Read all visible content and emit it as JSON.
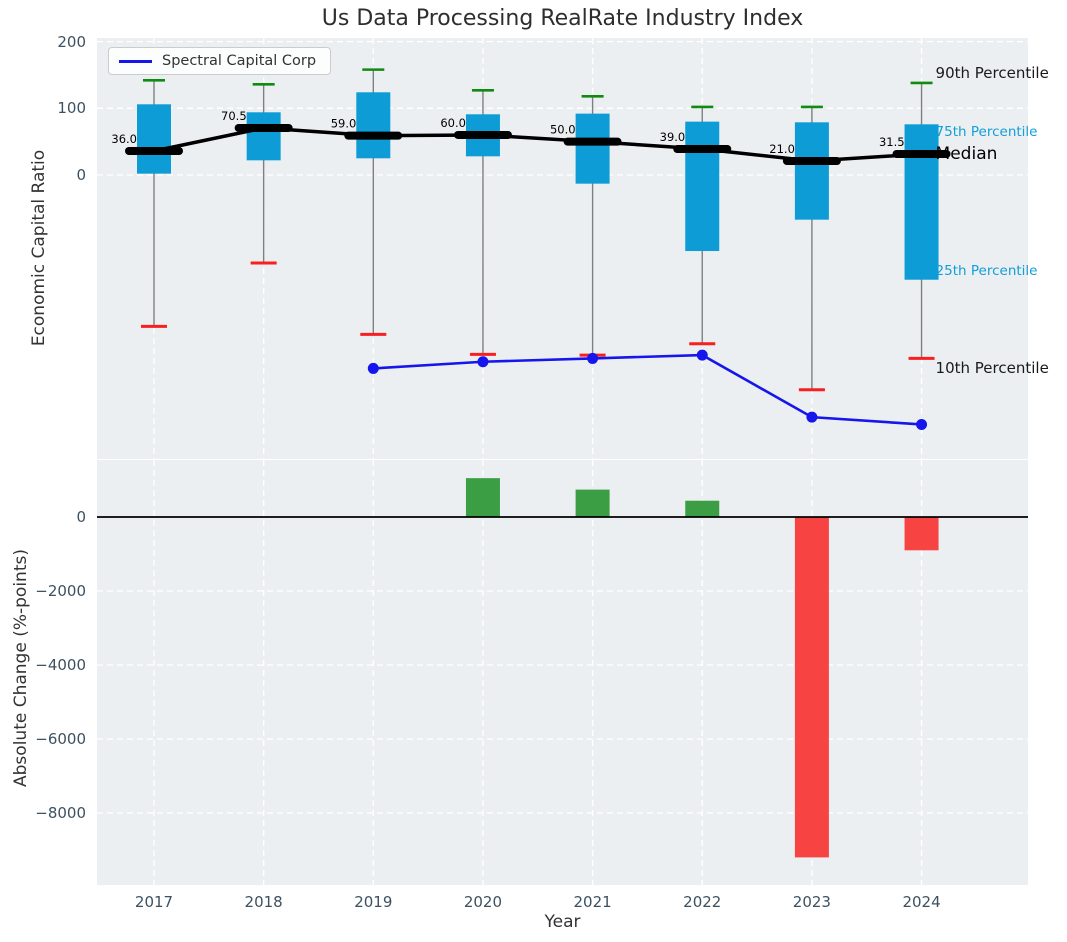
{
  "title": "Us Data Processing RealRate Industry Index",
  "legend": {
    "label": "Spectral Capital Corp"
  },
  "colors": {
    "axes_bg": "#ECEFF1",
    "grid": "#ffffff",
    "box": "#0D9CD6",
    "whisker": "#7f7f7f",
    "cap_90": "#108A10",
    "cap_10": "#F71F1F",
    "median": "#000000",
    "company_line": "#1616EC",
    "bar_positive": "#3C9E44",
    "bar_negative": "#F84343",
    "tick_text": "#3D5161",
    "percentile_label_cyan": "#129ED9",
    "zero_line": "#000000"
  },
  "right_labels": [
    {
      "text": "90th Percentile",
      "style": "black-large"
    },
    {
      "text": "75th Percentile",
      "style": "cyan-small"
    },
    {
      "text": "Median",
      "style": "black-xlarge"
    },
    {
      "text": "25th Percentile",
      "style": "cyan-small"
    },
    {
      "text": "10th Percentile",
      "style": "black-large"
    }
  ],
  "chart_data": [
    {
      "type": "box-percentile",
      "title": "Us Data Processing RealRate Industry Index",
      "ylabel": "Economic Capital Ratio",
      "categories": [
        "2017",
        "2018",
        "2019",
        "2020",
        "2021",
        "2022",
        "2023",
        "2024"
      ],
      "yticks": [
        200,
        100,
        0
      ],
      "ylim": [
        -426,
        205
      ],
      "grid": true,
      "legend_position": "upper left",
      "series": [
        {
          "name": "90th Percentile",
          "values": [
            142,
            136,
            158,
            127,
            118,
            102,
            102,
            138
          ]
        },
        {
          "name": "75th Percentile",
          "values": [
            106,
            94,
            124,
            91,
            92,
            80,
            79,
            76
          ]
        },
        {
          "name": "Median",
          "values": [
            36.0,
            70.5,
            59.0,
            60.0,
            50.0,
            39.0,
            21.0,
            31.5
          ],
          "labels": [
            "36.0",
            "70.5",
            "59.0",
            "60.0",
            "50.0",
            "39.0",
            "21.0",
            "31.5"
          ]
        },
        {
          "name": "25th Percentile",
          "values": [
            2,
            22,
            25,
            28,
            -13,
            -114,
            -67,
            -157
          ]
        },
        {
          "name": "10th Percentile",
          "values": [
            -227,
            -132,
            -239,
            -269,
            -270,
            -253,
            -322,
            -275
          ]
        },
        {
          "name": "Spectral Capital Corp",
          "type": "line",
          "values": [
            null,
            null,
            -290,
            -280,
            -275,
            -270,
            -363,
            -374
          ]
        }
      ]
    },
    {
      "type": "bar",
      "ylabel": "Absolute Change (%-points)",
      "xlabel": "Year",
      "categories": [
        "2017",
        "2018",
        "2019",
        "2020",
        "2021",
        "2022",
        "2023",
        "2024"
      ],
      "values": [
        null,
        null,
        null,
        1050,
        740,
        440,
        -9200,
        -900
      ],
      "yticks": [
        0,
        -2000,
        -4000,
        -6000,
        -8000
      ],
      "ylim": [
        -9950,
        1540
      ],
      "grid": true
    }
  ]
}
